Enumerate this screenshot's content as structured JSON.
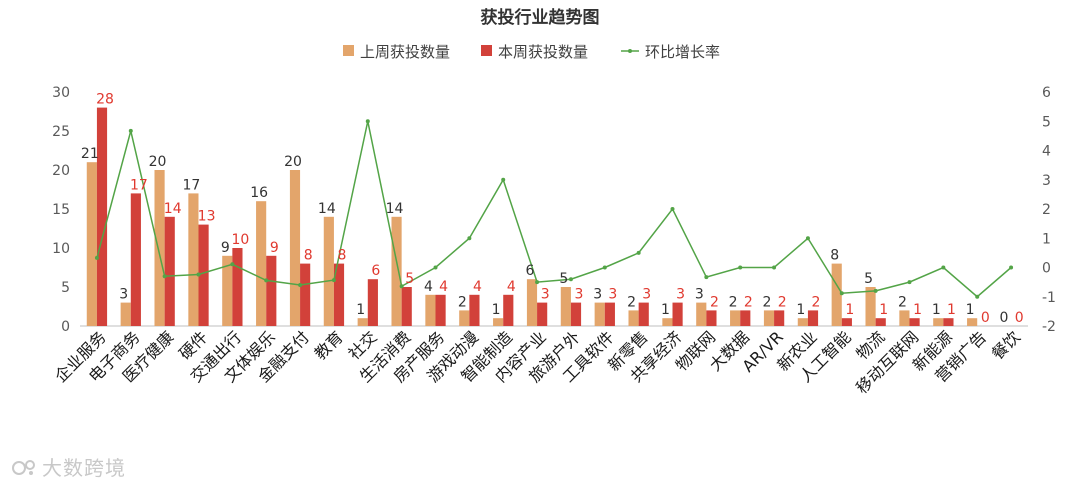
{
  "chart_data": {
    "type": "bar",
    "title": "获投行业趋势图",
    "legend": [
      "上周获投数量",
      "本周获投数量",
      "环比增长率"
    ],
    "legend_position": "top",
    "categories": [
      "企业服务",
      "电子商务",
      "医疗健康",
      "硬件",
      "交通出行",
      "文体娱乐",
      "金融支付",
      "教育",
      "社交",
      "生活消费",
      "房产服务",
      "游戏动漫",
      "智能制造",
      "内容产业",
      "旅游户外",
      "工具软件",
      "新零售",
      "共享经济",
      "物联网",
      "大数据",
      "AR/VR",
      "新农业",
      "人工智能",
      "物流",
      "移动互联网",
      "新能源",
      "营销广告",
      "餐饮"
    ],
    "series": [
      {
        "name": "上周获投数量",
        "type": "bar",
        "axis": "left",
        "color": "#E3A56B",
        "values": [
          21,
          3,
          20,
          17,
          9,
          16,
          20,
          14,
          1,
          14,
          4,
          2,
          1,
          6,
          5,
          3,
          2,
          1,
          3,
          2,
          2,
          1,
          8,
          5,
          2,
          1,
          1,
          0
        ]
      },
      {
        "name": "本周获投数量",
        "type": "bar",
        "axis": "left",
        "color": "#D2413A",
        "values": [
          28,
          17,
          14,
          13,
          10,
          9,
          8,
          8,
          6,
          5,
          4,
          4,
          4,
          3,
          3,
          3,
          3,
          3,
          2,
          2,
          2,
          2,
          1,
          1,
          1,
          1,
          0,
          0
        ]
      },
      {
        "name": "环比增长率",
        "type": "line",
        "axis": "right",
        "color": "#53A447",
        "values": [
          0.33,
          4.67,
          -0.3,
          -0.24,
          0.11,
          -0.44,
          -0.6,
          -0.43,
          5,
          -0.64,
          0,
          1,
          3,
          -0.5,
          -0.4,
          0,
          0.5,
          2,
          -0.33,
          0,
          0,
          1,
          -0.88,
          -0.8,
          -0.5,
          0,
          -1,
          0
        ]
      }
    ],
    "ylim_left": [
      0,
      30
    ],
    "ylim_right": [
      -2,
      6
    ],
    "yticks_left": [
      "0",
      "5",
      "10",
      "15",
      "20",
      "25",
      "30"
    ],
    "yticks_right": [
      "-2",
      "-1",
      "0",
      "1",
      "2",
      "3",
      "4",
      "5",
      "6"
    ],
    "grid": false
  },
  "watermark": "大数跨境"
}
